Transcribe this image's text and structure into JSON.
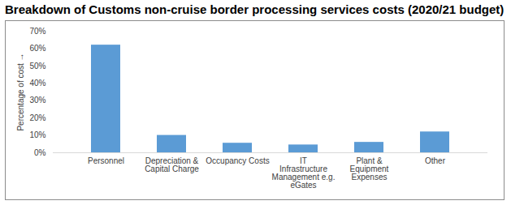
{
  "chart_data": {
    "type": "bar",
    "title": "Breakdown of Customs non-cruise border processing services costs (2020/21 budget)",
    "y_label": "Percentage of cost",
    "categories": [
      "Personnel",
      "Depreciation & Capital Charge",
      "Occupancy Costs",
      "IT Infrastructure Management e.g. eGates",
      "Plant & Equipment Expenses",
      "Other"
    ],
    "values": [
      62,
      10,
      5.5,
      4.5,
      6,
      12
    ],
    "color": "#5b9bd5",
    "ylim": [
      0,
      70
    ],
    "yticks": [
      {
        "value": 0,
        "label": "0%"
      },
      {
        "value": 10,
        "label": "10%"
      },
      {
        "value": 20,
        "label": "20%"
      },
      {
        "value": 30,
        "label": "30%"
      },
      {
        "value": 40,
        "label": "40%"
      },
      {
        "value": 50,
        "label": "50%"
      },
      {
        "value": 60,
        "label": "60%"
      },
      {
        "value": 70,
        "label": "70%"
      }
    ],
    "grid": false
  }
}
